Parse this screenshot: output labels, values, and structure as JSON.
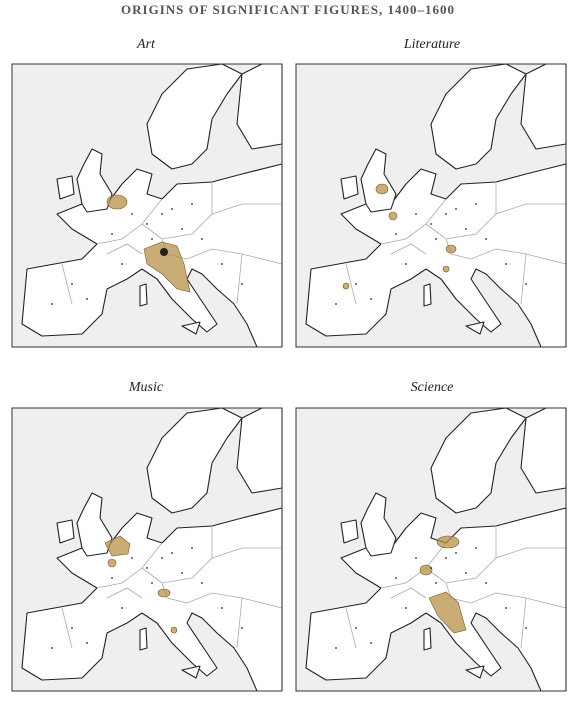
{
  "header": {
    "title": "ORIGINS OF SIGNIFICANT FIGURES, 1400–1600"
  },
  "panels": [
    {
      "label": "Art"
    },
    {
      "label": "Literature"
    },
    {
      "label": "Music"
    },
    {
      "label": "Science"
    }
  ]
}
